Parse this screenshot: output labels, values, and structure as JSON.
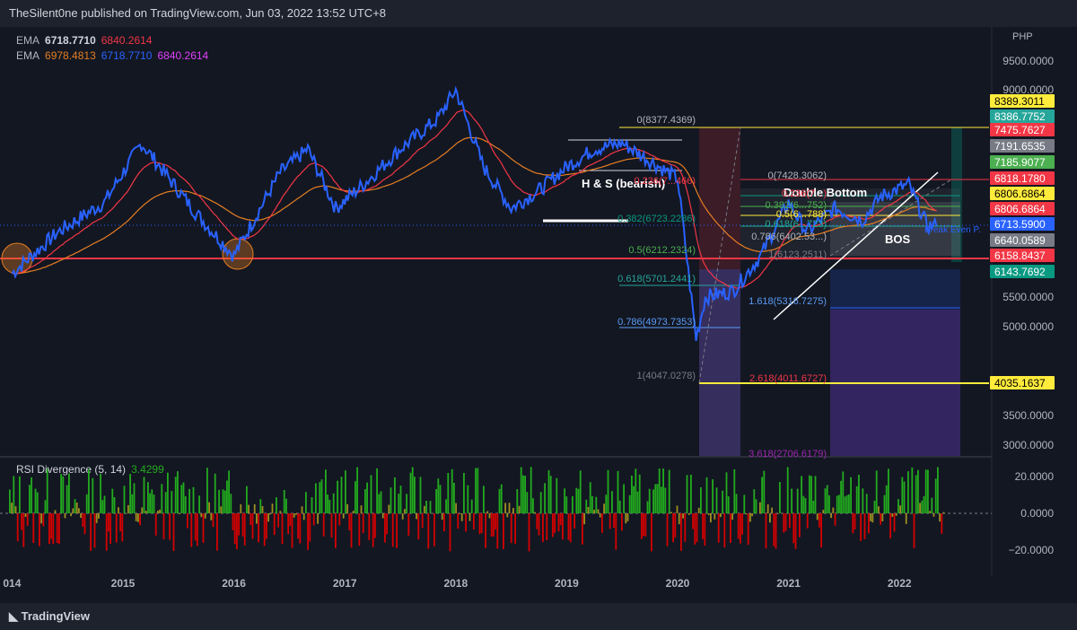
{
  "header": {
    "published": "TheSilent0ne published on TradingView.com, Jun 03, 2022 13:52 UTC+8"
  },
  "footer": {
    "brand": "TradingView"
  },
  "legend": {
    "ema1": {
      "label": "EMA",
      "v1": "6718.7710",
      "v2": "6840.2614"
    },
    "ema2": {
      "label": "EMA",
      "v1": "6978.4813",
      "v2": "6718.7710",
      "v3": "6840.2614"
    },
    "rsi": {
      "label": "RSI Divergence (5, 14)",
      "value": "3.4299"
    }
  },
  "colors": {
    "background": "#131722",
    "price_line": "#2962ff",
    "ema_fast": "#f23645",
    "ema_slow": "#e67e22",
    "support": "#f23645",
    "fib_yellow": "#ffeb3b",
    "rsi_up": "#22ab1e",
    "rsi_down": "#d50000"
  },
  "price_axis": {
    "currency": "PHP",
    "ticks": [
      "9500.0000",
      "9000.0000",
      "5500.0000",
      "5000.0000",
      "4035.1637",
      "3500.0000",
      "3000.0000"
    ]
  },
  "price_tags": [
    {
      "text": "8389.3011",
      "bg": "#ffeb3b",
      "fg": "#000000"
    },
    {
      "text": "8386.7752",
      "bg": "#26a69a",
      "fg": "#ffffff"
    },
    {
      "text": "7475.7627",
      "bg": "#f23645",
      "fg": "#ffffff"
    },
    {
      "text": "7191.6535",
      "bg": "#787b86",
      "fg": "#ffffff"
    },
    {
      "text": "7185.9077",
      "bg": "#4caf50",
      "fg": "#ffffff"
    },
    {
      "text": "6818.1780",
      "bg": "#f23645",
      "fg": "#ffffff"
    },
    {
      "text": "6806.6864",
      "bg": "#ffeb3b",
      "fg": "#000000"
    },
    {
      "text": "6806.6864",
      "bg": "#f23645",
      "fg": "#ffffff"
    },
    {
      "text": "6713.5900",
      "bg": "#2962ff",
      "fg": "#ffffff"
    },
    {
      "text": "6640.0589",
      "bg": "#787b86",
      "fg": "#ffffff"
    },
    {
      "text": "6158.8437",
      "bg": "#f23645",
      "fg": "#ffffff"
    },
    {
      "text": "6143.7692",
      "bg": "#089981",
      "fg": "#ffffff"
    },
    {
      "text": "4035.1637",
      "bg": "#ffeb3b",
      "fg": "#000000"
    }
  ],
  "rsi_axis": {
    "ticks": [
      "20.0000",
      "0.0000",
      "−20.0000"
    ]
  },
  "time_axis": {
    "ticks": [
      "014",
      "2015",
      "2016",
      "2017",
      "2018",
      "2019",
      "2020",
      "2021",
      "2022"
    ]
  },
  "annotations": {
    "hs": "H & S (bearish)",
    "double_bottom": "Double Bottom",
    "bos": "BOS",
    "break_even": "Break Even P."
  },
  "fib1": [
    {
      "label": "0(8377.4369)"
    },
    {
      "label": "0.236(7...466)"
    },
    {
      "label": "0.382(6723.2286)"
    },
    {
      "label": "0.5(6212.2324)"
    },
    {
      "label": "0.618(5701.2441)"
    },
    {
      "label": "0.786(4973.7353)"
    },
    {
      "label": "1(4047.0278)"
    }
  ],
  "fib2": [
    {
      "label": "0(7428.3062)"
    },
    {
      "label": "0.236(7...)"
    },
    {
      "label": "0.382(6...752)"
    },
    {
      "label": "0.5(6...788)"
    },
    {
      "label": "0.618(6...723)"
    },
    {
      "label": "0.786(6402.53...)"
    },
    {
      "label": "1(6123.2511)"
    },
    {
      "label": "1.618(5316.7275)"
    },
    {
      "label": "2.618(4011.6727)"
    },
    {
      "label": "3.618(2706.6179)"
    }
  ],
  "chart_data": {
    "type": "line",
    "title": "",
    "ylabel": "PHP",
    "ylim": [
      2800,
      9800
    ],
    "x_range": [
      "2014-01",
      "2022-09"
    ],
    "series": [
      {
        "name": "",
        "x": [
          "2014-01",
          "2014-06",
          "2014-11",
          "2015-03",
          "2015-09",
          "2016-01",
          "2016-06",
          "2016-09",
          "2016-12",
          "2017-03",
          "2017-07",
          "2017-11",
          "2018-01",
          "2018-04",
          "2018-07",
          "2018-10",
          "2019-01",
          "2019-04",
          "2019-07",
          "2019-10",
          "2020-01",
          "2020-03",
          "2020-04",
          "2020-07",
          "2020-10",
          "2021-01",
          "2021-03",
          "2021-06",
          "2021-09",
          "2021-11",
          "2022-02",
          "2022-04",
          "2022-05"
        ],
        "values": [
          5900,
          6600,
          7100,
          8100,
          6900,
          6200,
          7600,
          8000,
          7000,
          7400,
          8000,
          8500,
          9000,
          7700,
          7000,
          7300,
          7700,
          8000,
          8100,
          7800,
          7500,
          4800,
          5500,
          5600,
          6200,
          7100,
          6600,
          7000,
          6800,
          7200,
          7400,
          6700,
          6700
        ]
      }
    ]
  },
  "rsi_data": {
    "type": "bar",
    "ylim": [
      -25,
      25
    ],
    "note": ""
  }
}
